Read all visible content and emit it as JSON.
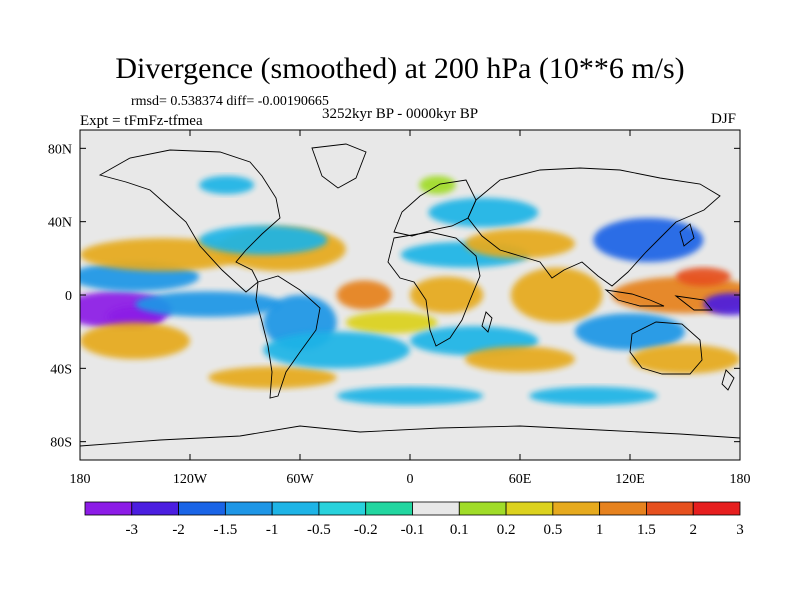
{
  "title": "Divergence (smoothed) at 200 hPa (10**6 m/s)",
  "stats": "rmsd= 0.538374 diff= -0.00190665",
  "period": "3252kyr BP - 0000kyr BP",
  "experiment": "Expt = tFmFz-tfmea",
  "season": "DJF",
  "map": {
    "projection": "cylindrical equidistant",
    "lon_range": [
      -180,
      180
    ],
    "lat_range": [
      -90,
      90
    ],
    "background_color": "#e8e8e8",
    "x_tick_labels": [
      "180",
      "120W",
      "60W",
      "0",
      "60E",
      "120E",
      "180"
    ],
    "x_tick_values": [
      -180,
      -120,
      -60,
      0,
      60,
      120,
      180
    ],
    "y_tick_labels": [
      "80N",
      "40N",
      "0",
      "40S",
      "80S"
    ],
    "y_tick_values": [
      80,
      40,
      0,
      -40,
      -80
    ]
  },
  "colorbar": {
    "labels": [
      "-3",
      "-2",
      "-1.5",
      "-1",
      "-0.5",
      "-0.2",
      "-0.1",
      "0.1",
      "0.2",
      "0.5",
      "1",
      "1.5",
      "2",
      "3"
    ],
    "colors": [
      "#8c1ce6",
      "#4b1ee0",
      "#1a64e6",
      "#1e96e6",
      "#1eb4e6",
      "#28d2dc",
      "#22d6a0",
      "#e8e8e8",
      "#a0dc28",
      "#dcd21e",
      "#e6aa1e",
      "#e6821e",
      "#e6501e",
      "#e61e1e"
    ]
  },
  "anomaly_features": [
    {
      "lon": -160,
      "lat": -8,
      "r_lon": 30,
      "r_lat": 10,
      "level": "-3"
    },
    {
      "lon": -150,
      "lat": -12,
      "r_lon": 15,
      "r_lat": 6,
      "level": "-3"
    },
    {
      "lon": -110,
      "lat": -5,
      "r_lon": 40,
      "r_lat": 7,
      "level": "-1"
    },
    {
      "lon": -150,
      "lat": 10,
      "r_lon": 35,
      "r_lat": 8,
      "level": "-1"
    },
    {
      "lon": -135,
      "lat": 22,
      "r_lon": 45,
      "r_lat": 9,
      "level": "1"
    },
    {
      "lon": -150,
      "lat": -25,
      "r_lon": 30,
      "r_lat": 10,
      "level": "1"
    },
    {
      "lon": -70,
      "lat": 25,
      "r_lon": 35,
      "r_lat": 12,
      "level": "1"
    },
    {
      "lon": -75,
      "lat": -45,
      "r_lon": 35,
      "r_lat": 6,
      "level": "1"
    },
    {
      "lon": -80,
      "lat": 30,
      "r_lon": 35,
      "r_lat": 8,
      "level": "-0.5"
    },
    {
      "lon": -60,
      "lat": -15,
      "r_lon": 20,
      "r_lat": 15,
      "level": "-1"
    },
    {
      "lon": -25,
      "lat": 0,
      "r_lon": 15,
      "r_lat": 8,
      "level": "1.5"
    },
    {
      "lon": -10,
      "lat": -15,
      "r_lon": 25,
      "r_lat": 6,
      "level": "0.5"
    },
    {
      "lon": -40,
      "lat": -30,
      "r_lon": 40,
      "r_lat": 10,
      "level": "-0.5"
    },
    {
      "lon": 30,
      "lat": 22,
      "r_lon": 35,
      "r_lat": 7,
      "level": "-0.5"
    },
    {
      "lon": 20,
      "lat": 0,
      "r_lon": 20,
      "r_lat": 10,
      "level": "1"
    },
    {
      "lon": 35,
      "lat": -25,
      "r_lon": 35,
      "r_lat": 8,
      "level": "-0.5"
    },
    {
      "lon": 40,
      "lat": 45,
      "r_lon": 30,
      "r_lat": 8,
      "level": "-0.5"
    },
    {
      "lon": 60,
      "lat": 28,
      "r_lon": 30,
      "r_lat": 8,
      "level": "1"
    },
    {
      "lon": 80,
      "lat": 0,
      "r_lon": 25,
      "r_lat": 15,
      "level": "1"
    },
    {
      "lon": 60,
      "lat": -35,
      "r_lon": 30,
      "r_lat": 7,
      "level": "1"
    },
    {
      "lon": 130,
      "lat": 30,
      "r_lon": 30,
      "r_lat": 12,
      "level": "-1.5"
    },
    {
      "lon": 150,
      "lat": 0,
      "r_lon": 40,
      "r_lat": 10,
      "level": "1.5"
    },
    {
      "lon": 160,
      "lat": 10,
      "r_lon": 15,
      "r_lat": 5,
      "level": "2"
    },
    {
      "lon": 120,
      "lat": -20,
      "r_lon": 30,
      "r_lat": 10,
      "level": "-1"
    },
    {
      "lon": 175,
      "lat": -5,
      "r_lon": 15,
      "r_lat": 6,
      "level": "-2"
    },
    {
      "lon": 150,
      "lat": -35,
      "r_lon": 30,
      "r_lat": 8,
      "level": "1"
    },
    {
      "lon": 100,
      "lat": -55,
      "r_lon": 35,
      "r_lat": 5,
      "level": "-0.5"
    },
    {
      "lon": 0,
      "lat": -55,
      "r_lon": 40,
      "r_lat": 5,
      "level": "-0.5"
    },
    {
      "lon": -100,
      "lat": 60,
      "r_lon": 15,
      "r_lat": 5,
      "level": "-0.5"
    },
    {
      "lon": 15,
      "lat": 60,
      "r_lon": 10,
      "r_lat": 5,
      "level": "0.2"
    }
  ]
}
